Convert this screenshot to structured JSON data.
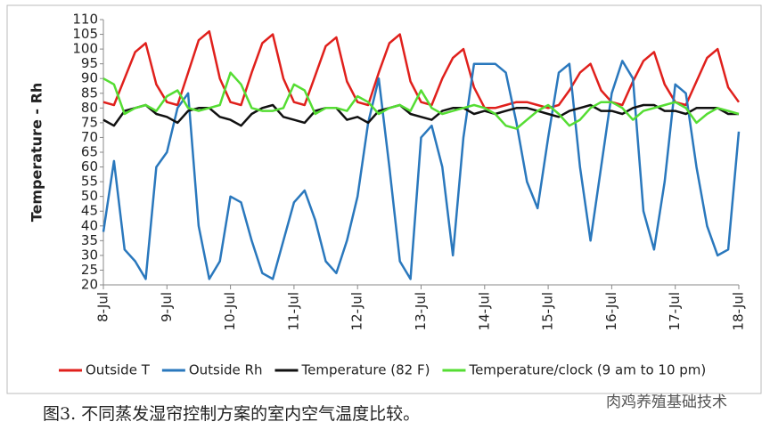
{
  "chart_data": {
    "type": "line",
    "ylabel": "Temperature - Rh",
    "caption": "图3. 不同蒸发湿帘控制方案的室内空气温度比较。",
    "watermark": "肉鸡养殖基础技术",
    "legend": "bottom",
    "grid": false,
    "xlim": [
      0,
      240
    ],
    "xticks": [
      {
        "value": 0,
        "label": "8-Jul"
      },
      {
        "value": 24,
        "label": "9-Jul"
      },
      {
        "value": 48,
        "label": "10-Jul"
      },
      {
        "value": 72,
        "label": "11-Jul"
      },
      {
        "value": 96,
        "label": "12-Jul"
      },
      {
        "value": 120,
        "label": "13-Jul"
      },
      {
        "value": 144,
        "label": "14-Jul"
      },
      {
        "value": 168,
        "label": "15-Jul"
      },
      {
        "value": 192,
        "label": "16-Jul"
      },
      {
        "value": 216,
        "label": "17-Jul"
      },
      {
        "value": 240,
        "label": "18-Jul"
      }
    ],
    "ylim": [
      20,
      110
    ],
    "yticks": [
      20,
      25,
      30,
      35,
      40,
      45,
      50,
      55,
      60,
      65,
      70,
      75,
      80,
      85,
      90,
      95,
      100,
      105,
      110
    ],
    "x": [
      0,
      4,
      8,
      12,
      16,
      20,
      24,
      28,
      32,
      36,
      40,
      44,
      48,
      52,
      56,
      60,
      64,
      68,
      72,
      76,
      80,
      84,
      88,
      92,
      96,
      100,
      104,
      108,
      112,
      116,
      120,
      124,
      128,
      132,
      136,
      140,
      144,
      148,
      152,
      156,
      160,
      164,
      168,
      172,
      176,
      180,
      184,
      188,
      192,
      196,
      200,
      204,
      208,
      212,
      216,
      220,
      224,
      228,
      232,
      236,
      240
    ],
    "series": [
      {
        "name": "Outside T",
        "color": "#e0201c",
        "values": [
          82,
          81,
          90,
          99,
          102,
          88,
          82,
          81,
          92,
          103,
          106,
          90,
          82,
          81,
          92,
          102,
          105,
          90,
          82,
          81,
          91,
          101,
          104,
          89,
          82,
          81,
          92,
          102,
          105,
          89,
          82,
          81,
          90,
          97,
          100,
          87,
          80,
          80,
          81,
          82,
          82,
          81,
          80,
          81,
          86,
          92,
          95,
          86,
          82,
          81,
          89,
          96,
          99,
          88,
          82,
          81,
          89,
          97,
          100,
          87,
          82
        ]
      },
      {
        "name": "Outside Rh",
        "color": "#2a78bd",
        "values": [
          38,
          62,
          32,
          28,
          22,
          60,
          65,
          80,
          85,
          40,
          22,
          28,
          50,
          48,
          35,
          24,
          22,
          35,
          48,
          52,
          42,
          28,
          24,
          35,
          50,
          75,
          90,
          60,
          28,
          22,
          70,
          74,
          60,
          30,
          70,
          95,
          95,
          95,
          92,
          75,
          55,
          46,
          70,
          92,
          95,
          60,
          35,
          60,
          85,
          96,
          90,
          45,
          32,
          55,
          88,
          85,
          60,
          40,
          30,
          32,
          72
        ]
      },
      {
        "name": "Temperature (82 F)",
        "color": "#111111",
        "values": [
          76,
          74,
          79,
          80,
          81,
          78,
          77,
          75,
          79,
          80,
          80,
          77,
          76,
          74,
          78,
          80,
          81,
          77,
          76,
          75,
          79,
          80,
          80,
          76,
          77,
          75,
          79,
          80,
          81,
          78,
          77,
          76,
          79,
          80,
          80,
          78,
          79,
          78,
          79,
          80,
          80,
          79,
          78,
          77,
          79,
          80,
          81,
          79,
          79,
          78,
          80,
          81,
          81,
          79,
          79,
          78,
          80,
          80,
          80,
          78,
          78
        ]
      },
      {
        "name": "Temperature/clock (9 am to 10 pm)",
        "color": "#55dd33",
        "values": [
          90,
          88,
          78,
          80,
          81,
          79,
          84,
          86,
          80,
          79,
          80,
          81,
          92,
          88,
          80,
          79,
          79,
          80,
          88,
          86,
          78,
          80,
          80,
          79,
          84,
          82,
          78,
          80,
          81,
          79,
          86,
          80,
          78,
          79,
          80,
          81,
          80,
          78,
          74,
          73,
          76,
          79,
          81,
          78,
          74,
          76,
          80,
          82,
          82,
          80,
          76,
          79,
          80,
          81,
          82,
          80,
          75,
          78,
          80,
          79,
          78
        ]
      }
    ]
  }
}
